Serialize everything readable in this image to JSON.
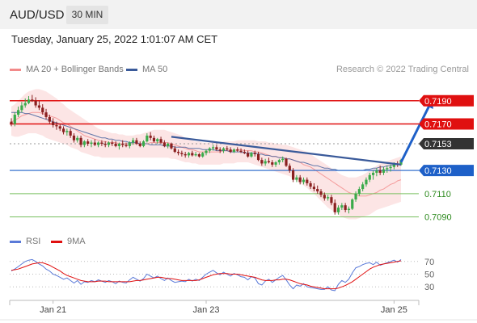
{
  "header": {
    "pair": "AUD/USD",
    "timeframe": "30 MIN"
  },
  "datetime": "Tuesday, January 25, 2022 1:01:07 AM CET",
  "legend": {
    "ma20_label": "MA 20 + Bollinger Bands",
    "ma50_label": "MA 50",
    "rsi_label": "RSI",
    "ma9_label": "9MA",
    "research": "Research © 2022 Trading Central"
  },
  "colors": {
    "bb": "#f28a8a",
    "ma50": "#3a5a9a",
    "resistance": "#e01010",
    "support_primary": "#1e60c8",
    "support_secondary": "#7ac060",
    "rsi": "#5a7ad8",
    "ma9": "#e01010",
    "up_candle": "#3aaa4a",
    "down_candle": "#8a2020",
    "current": "#333333"
  },
  "chart_data": {
    "type": "candlestick",
    "yrange": [
      7080,
      7210
    ],
    "price_divisor": 10000,
    "x_labels": [
      "Jan 21",
      "Jan 23",
      "Jan 25"
    ],
    "levels": [
      {
        "value": 7190,
        "label": "0.7190",
        "kind": "resistance"
      },
      {
        "value": 7170,
        "label": "0.7170",
        "kind": "resistance"
      },
      {
        "value": 7153,
        "label": "0.7153",
        "kind": "current"
      },
      {
        "value": 7130,
        "label": "0.7130",
        "kind": "support_primary"
      },
      {
        "value": 7110,
        "label": "0.7110",
        "kind": "support_secondary"
      },
      {
        "value": 7090,
        "label": "0.7090",
        "kind": "support_secondary"
      }
    ],
    "ohlc": [
      [
        7172,
        7175,
        7168,
        7170
      ],
      [
        7170,
        7180,
        7168,
        7178
      ],
      [
        7178,
        7185,
        7176,
        7182
      ],
      [
        7182,
        7189,
        7180,
        7186
      ],
      [
        7186,
        7192,
        7184,
        7188
      ],
      [
        7188,
        7194,
        7187,
        7191
      ],
      [
        7191,
        7195,
        7189,
        7190
      ],
      [
        7190,
        7193,
        7184,
        7186
      ],
      [
        7186,
        7190,
        7182,
        7184
      ],
      [
        7184,
        7187,
        7178,
        7180
      ],
      [
        7180,
        7183,
        7174,
        7176
      ],
      [
        7176,
        7178,
        7170,
        7172
      ],
      [
        7172,
        7175,
        7167,
        7169
      ],
      [
        7169,
        7172,
        7165,
        7168
      ],
      [
        7168,
        7170,
        7164,
        7166
      ],
      [
        7166,
        7168,
        7161,
        7163
      ],
      [
        7163,
        7166,
        7160,
        7164
      ],
      [
        7164,
        7166,
        7158,
        7160
      ],
      [
        7160,
        7162,
        7154,
        7156
      ],
      [
        7156,
        7160,
        7154,
        7158
      ],
      [
        7158,
        7160,
        7150,
        7152
      ],
      [
        7152,
        7156,
        7150,
        7155
      ],
      [
        7155,
        7157,
        7151,
        7153
      ],
      [
        7153,
        7156,
        7150,
        7154
      ],
      [
        7154,
        7157,
        7151,
        7152
      ],
      [
        7152,
        7155,
        7150,
        7154
      ],
      [
        7154,
        7156,
        7151,
        7153
      ],
      [
        7153,
        7155,
        7150,
        7152
      ],
      [
        7152,
        7155,
        7150,
        7154
      ],
      [
        7154,
        7156,
        7151,
        7153
      ],
      [
        7153,
        7155,
        7150,
        7151
      ],
      [
        7151,
        7154,
        7148,
        7153
      ],
      [
        7153,
        7156,
        7150,
        7152
      ],
      [
        7152,
        7154,
        7150,
        7151
      ],
      [
        7151,
        7155,
        7149,
        7154
      ],
      [
        7154,
        7158,
        7152,
        7156
      ],
      [
        7156,
        7158,
        7152,
        7153
      ],
      [
        7153,
        7155,
        7150,
        7151
      ],
      [
        7151,
        7156,
        7150,
        7155
      ],
      [
        7155,
        7162,
        7154,
        7160
      ],
      [
        7160,
        7163,
        7156,
        7158
      ],
      [
        7158,
        7160,
        7154,
        7155
      ],
      [
        7155,
        7158,
        7153,
        7157
      ],
      [
        7157,
        7159,
        7153,
        7154
      ],
      [
        7154,
        7156,
        7150,
        7151
      ],
      [
        7151,
        7154,
        7149,
        7153
      ],
      [
        7153,
        7154,
        7148,
        7149
      ],
      [
        7149,
        7151,
        7145,
        7146
      ],
      [
        7146,
        7148,
        7143,
        7145
      ],
      [
        7145,
        7147,
        7142,
        7144
      ],
      [
        7144,
        7146,
        7141,
        7143
      ],
      [
        7143,
        7146,
        7141,
        7145
      ],
      [
        7145,
        7147,
        7142,
        7143
      ],
      [
        7143,
        7146,
        7142,
        7144
      ],
      [
        7144,
        7145,
        7141,
        7142
      ],
      [
        7142,
        7146,
        7141,
        7145
      ],
      [
        7145,
        7148,
        7143,
        7147
      ],
      [
        7147,
        7150,
        7145,
        7149
      ],
      [
        7149,
        7152,
        7147,
        7150
      ],
      [
        7150,
        7152,
        7147,
        7148
      ],
      [
        7148,
        7150,
        7145,
        7147
      ],
      [
        7147,
        7150,
        7145,
        7149
      ],
      [
        7149,
        7151,
        7147,
        7148
      ],
      [
        7148,
        7150,
        7145,
        7146
      ],
      [
        7146,
        7149,
        7145,
        7148
      ],
      [
        7148,
        7150,
        7146,
        7147
      ],
      [
        7147,
        7149,
        7145,
        7146
      ],
      [
        7146,
        7148,
        7144,
        7145
      ],
      [
        7145,
        7147,
        7141,
        7142
      ],
      [
        7142,
        7146,
        7141,
        7145
      ],
      [
        7145,
        7147,
        7142,
        7144
      ],
      [
        7144,
        7146,
        7138,
        7139
      ],
      [
        7139,
        7141,
        7134,
        7136
      ],
      [
        7136,
        7140,
        7134,
        7138
      ],
      [
        7138,
        7141,
        7136,
        7137
      ],
      [
        7137,
        7139,
        7133,
        7135
      ],
      [
        7135,
        7138,
        7133,
        7137
      ],
      [
        7137,
        7140,
        7135,
        7139
      ],
      [
        7139,
        7142,
        7137,
        7140
      ],
      [
        7140,
        7141,
        7133,
        7134
      ],
      [
        7134,
        7136,
        7128,
        7130
      ],
      [
        7130,
        7132,
        7120,
        7122
      ],
      [
        7122,
        7126,
        7120,
        7124
      ],
      [
        7124,
        7126,
        7118,
        7120
      ],
      [
        7120,
        7124,
        7118,
        7122
      ],
      [
        7122,
        7124,
        7117,
        7119
      ],
      [
        7119,
        7121,
        7114,
        7116
      ],
      [
        7116,
        7119,
        7112,
        7114
      ],
      [
        7114,
        7117,
        7110,
        7112
      ],
      [
        7112,
        7114,
        7107,
        7109
      ],
      [
        7109,
        7111,
        7104,
        7106
      ],
      [
        7106,
        7109,
        7104,
        7107
      ],
      [
        7107,
        7109,
        7100,
        7102
      ],
      [
        7102,
        7105,
        7092,
        7094
      ],
      [
        7094,
        7100,
        7092,
        7098
      ],
      [
        7098,
        7102,
        7096,
        7100
      ],
      [
        7100,
        7102,
        7094,
        7096
      ],
      [
        7096,
        7099,
        7093,
        7097
      ],
      [
        7097,
        7106,
        7096,
        7105
      ],
      [
        7105,
        7112,
        7103,
        7110
      ],
      [
        7110,
        7116,
        7108,
        7114
      ],
      [
        7114,
        7120,
        7112,
        7118
      ],
      [
        7118,
        7124,
        7116,
        7122
      ],
      [
        7122,
        7128,
        7120,
        7126
      ],
      [
        7126,
        7130,
        7122,
        7128
      ],
      [
        7128,
        7132,
        7125,
        7130
      ],
      [
        7130,
        7134,
        7126,
        7128
      ],
      [
        7128,
        7133,
        7126,
        7131
      ],
      [
        7131,
        7134,
        7128,
        7132
      ],
      [
        7132,
        7135,
        7129,
        7133
      ],
      [
        7133,
        7137,
        7131,
        7136
      ],
      [
        7136,
        7138,
        7133,
        7135
      ],
      [
        7135,
        7140,
        7134,
        7139
      ]
    ],
    "ma20": [
      7172,
      7173,
      7175,
      7177,
      7178,
      7179,
      7180,
      7180,
      7180,
      7179,
      7178,
      7177,
      7176,
      7175,
      7173,
      7171,
      7170,
      7168,
      7166,
      7164,
      7162,
      7160,
      7159,
      7158,
      7157,
      7156,
      7155,
      7155,
      7154,
      7154,
      7154,
      7153,
      7153,
      7153,
      7153,
      7153,
      7153,
      7153,
      7153,
      7153,
      7154,
      7154,
      7154,
      7154,
      7154,
      7154,
      7153,
      7152,
      7151,
      7150,
      7149,
      7148,
      7148,
      7147,
      7146,
      7146,
      7146,
      7146,
      7146,
      7146,
      7146,
      7147,
      7147,
      7147,
      7147,
      7148,
      7148,
      7147,
      7147,
      7147,
      7146,
      7146,
      7145,
      7144,
      7143,
      7142,
      7142,
      7141,
      7141,
      7140,
      7140,
      7139,
      7138,
      7137,
      7135,
      7134,
      7133,
      7131,
      7129,
      7127,
      7125,
      7123,
      7121,
      7119,
      7117,
      7115,
      7113,
      7111,
      7110,
      7109,
      7108,
      7108,
      7108,
      7109,
      7110,
      7111,
      7113,
      7114,
      7116,
      7118,
      7119,
      7121,
      7122
    ],
    "bb_upper": [
      7185,
      7187,
      7190,
      7193,
      7196,
      7198,
      7199,
      7200,
      7200,
      7199,
      7198,
      7196,
      7194,
      7192,
      7189,
      7187,
      7184,
      7182,
      7180,
      7178,
      7176,
      7174,
      7172,
      7170,
      7168,
      7166,
      7165,
      7164,
      7163,
      7162,
      7162,
      7161,
      7161,
      7160,
      7160,
      7160,
      7161,
      7161,
      7162,
      7163,
      7164,
      7165,
      7165,
      7165,
      7165,
      7164,
      7163,
      7162,
      7161,
      7160,
      7158,
      7157,
      7156,
      7155,
      7155,
      7154,
      7154,
      7154,
      7154,
      7154,
      7154,
      7155,
      7155,
      7155,
      7155,
      7156,
      7156,
      7156,
      7156,
      7156,
      7156,
      7155,
      7155,
      7155,
      7154,
      7154,
      7153,
      7153,
      7152,
      7152,
      7151,
      7150,
      7149,
      7148,
      7147,
      7146,
      7144,
      7142,
      7140,
      7138,
      7136,
      7134,
      7132,
      7130,
      7128,
      7126,
      7125,
      7124,
      7124,
      7124,
      7125,
      7126,
      7128,
      7130,
      7132,
      7134,
      7136,
      7137,
      7138,
      7139,
      7140,
      7141,
      7142
    ],
    "bb_lower": [
      7160,
      7159,
      7159,
      7160,
      7161,
      7162,
      7162,
      7162,
      7161,
      7160,
      7158,
      7157,
      7156,
      7155,
      7154,
      7153,
      7152,
      7150,
      7149,
      7148,
      7146,
      7145,
      7144,
      7143,
      7142,
      7142,
      7141,
      7141,
      7141,
      7141,
      7141,
      7141,
      7141,
      7141,
      7141,
      7141,
      7141,
      7141,
      7141,
      7141,
      7141,
      7141,
      7141,
      7141,
      7141,
      7141,
      7140,
      7140,
      7139,
      7138,
      7137,
      7137,
      7136,
      7136,
      7135,
      7135,
      7135,
      7135,
      7135,
      7135,
      7135,
      7136,
      7136,
      7136,
      7136,
      7137,
      7137,
      7137,
      7137,
      7136,
      7135,
      7134,
      7133,
      7132,
      7131,
      7130,
      7129,
      7128,
      7127,
      7126,
      7125,
      7123,
      7121,
      7119,
      7117,
      7115,
      7112,
      7110,
      7107,
      7104,
      7101,
      7098,
      7096,
      7094,
      7092,
      7090,
      7089,
      7088,
      7088,
      7088,
      7089,
      7090,
      7091,
      7092,
      7094,
      7096,
      7097,
      7098,
      7099,
      7100,
      7101,
      7102,
      7103
    ],
    "ma50": [
      7180,
      7180,
      7180,
      7180,
      7179,
      7179,
      7178,
      7177,
      7176,
      7175,
      7174,
      7173,
      7172,
      7171,
      7170,
      7169,
      7168,
      7167,
      7166,
      7165,
      7164,
      7163,
      7162,
      7161,
      7160,
      7159,
      7158,
      7158,
      7157,
      7157,
      7156,
      7156,
      7155,
      7155,
      7154,
      7154,
      7154,
      7153,
      7153,
      7153,
      7152,
      7152,
      7152,
      7152,
      7151,
      7151,
      7151,
      7150,
      7150,
      7150,
      7150,
      7149,
      7149,
      7149,
      7149,
      7148,
      7148,
      7148,
      7148,
      7147,
      7147,
      7147,
      7147,
      7146,
      7146,
      7146,
      7146,
      7145,
      7145,
      7145,
      7145,
      7144,
      7144,
      7143,
      7143,
      7142,
      7142,
      7141,
      7141,
      7140,
      7140,
      7139,
      7138,
      7137,
      7137,
      7136,
      7135,
      7134,
      7134,
      7133,
      7132,
      7132,
      7131,
      7131,
      7130,
      7130,
      7130,
      7130,
      7130,
      7130,
      7130,
      7130,
      7131,
      7131,
      7132,
      7132,
      7133,
      7133,
      7134,
      7134,
      7135,
      7135,
      7136
    ],
    "trendline": {
      "from": [
        46,
        7159
      ],
      "to": [
        112,
        7135
      ]
    },
    "projection": {
      "from": [
        112,
        7137
      ],
      "to": [
        121,
        7191
      ]
    },
    "rsi": {
      "levels": [
        70,
        50,
        30
      ],
      "yrange": [
        15,
        85
      ],
      "rsi": [
        55,
        58,
        62,
        66,
        70,
        72,
        73,
        70,
        66,
        63,
        58,
        55,
        50,
        48,
        45,
        42,
        44,
        40,
        36,
        40,
        34,
        38,
        37,
        40,
        38,
        41,
        39,
        37,
        40,
        38,
        35,
        39,
        37,
        36,
        41,
        45,
        42,
        39,
        43,
        50,
        47,
        44,
        47,
        43,
        40,
        44,
        40,
        37,
        38,
        39,
        38,
        42,
        39,
        42,
        40,
        45,
        50,
        53,
        56,
        52,
        49,
        53,
        50,
        47,
        51,
        49,
        46,
        45,
        41,
        46,
        44,
        35,
        33,
        39,
        42,
        37,
        41,
        45,
        48,
        41,
        33,
        27,
        33,
        31,
        35,
        30,
        29,
        28,
        27,
        26,
        26,
        30,
        25,
        24,
        34,
        40,
        37,
        42,
        52,
        60,
        62,
        65,
        67,
        68,
        65,
        69,
        64,
        66,
        68,
        70,
        72,
        69,
        73
      ],
      "ma9": [
        56,
        57,
        58,
        60,
        62,
        64,
        66,
        67,
        68,
        68,
        66,
        64,
        61,
        58,
        55,
        51,
        48,
        46,
        44,
        42,
        40,
        39,
        38,
        38,
        38,
        39,
        39,
        39,
        38,
        38,
        38,
        38,
        38,
        38,
        38,
        39,
        40,
        40,
        41,
        42,
        43,
        44,
        45,
        45,
        44,
        43,
        43,
        42,
        41,
        40,
        40,
        40,
        40,
        40,
        41,
        43,
        45,
        47,
        49,
        50,
        51,
        51,
        51,
        50,
        50,
        50,
        49,
        48,
        47,
        46,
        45,
        43,
        41,
        40,
        40,
        40,
        41,
        41,
        42,
        42,
        41,
        39,
        37,
        35,
        34,
        33,
        31,
        30,
        29,
        28,
        27,
        27,
        27,
        27,
        28,
        30,
        32,
        35,
        38,
        42,
        46,
        50,
        54,
        58,
        61,
        63,
        65,
        66,
        67,
        68,
        69,
        70,
        71
      ]
    }
  }
}
